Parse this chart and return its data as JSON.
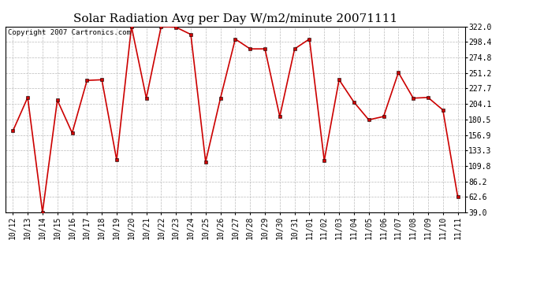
{
  "title": "Solar Radiation Avg per Day W/m2/minute 20071111",
  "copyright": "Copyright 2007 Cartronics.com",
  "labels": [
    "10/12",
    "10/13",
    "10/14",
    "10/15",
    "10/16",
    "10/17",
    "10/18",
    "10/19",
    "10/20",
    "10/21",
    "10/22",
    "10/23",
    "10/24",
    "10/25",
    "10/26",
    "10/27",
    "10/28",
    "10/29",
    "10/30",
    "10/31",
    "11/01",
    "11/02",
    "11/03",
    "11/04",
    "11/05",
    "11/06",
    "11/07",
    "11/08",
    "11/09",
    "11/10",
    "11/11"
  ],
  "values": [
    163,
    214,
    39,
    210,
    160,
    240,
    241,
    119,
    322,
    213,
    322,
    321,
    310,
    116,
    213,
    303,
    288,
    288,
    185,
    288,
    303,
    118,
    241,
    207,
    180,
    185,
    252,
    213,
    214,
    195,
    63
  ],
  "line_color": "#cc0000",
  "marker": "s",
  "marker_size": 2.5,
  "bg_color": "#ffffff",
  "grid_color": "#bbbbbb",
  "title_fontsize": 11,
  "copyright_fontsize": 6.5,
  "tick_fontsize": 7,
  "ylim_min": 39.0,
  "ylim_max": 322.0,
  "yticks": [
    39.0,
    62.6,
    86.2,
    109.8,
    133.3,
    156.9,
    180.5,
    204.1,
    227.7,
    251.2,
    274.8,
    298.4,
    322.0
  ]
}
